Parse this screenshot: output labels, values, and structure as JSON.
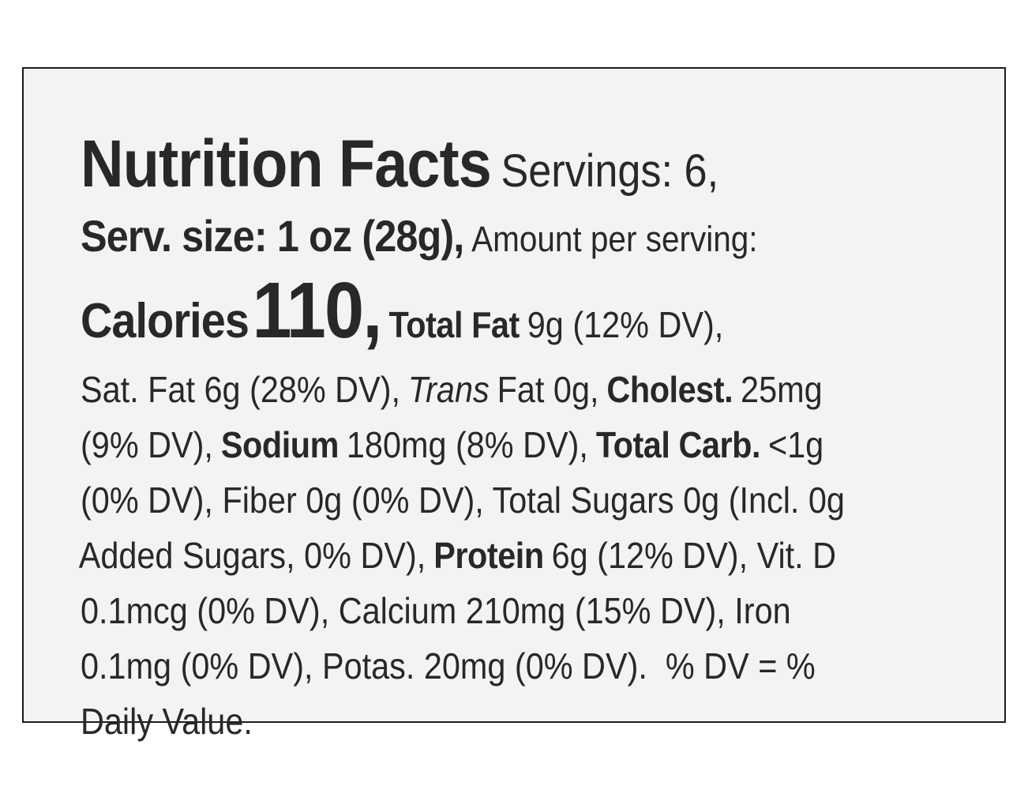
{
  "label": {
    "lines": [
      [
        "Nutrition Facts",
        "Servings: 6,"
      ],
      [
        "Serv. size: 1 oz (28g),",
        "Amount per serving:"
      ],
      [
        "Calories",
        "110,",
        "Total Fat",
        "9g (12% DV),"
      ],
      [
        "Sat. Fat 6g (28% DV),",
        "Trans",
        "Fat 0g,",
        "Cholest.",
        "25mg"
      ],
      [
        "(9% DV),",
        "Sodium",
        "180mg (8% DV),",
        "Total Carb.",
        "<1g"
      ],
      [
        "(0% DV), Fiber 0g (0% DV), Total Sugars 0g (Incl. 0g"
      ],
      [
        "Added Sugars, 0% DV),",
        "Protein",
        "6g (12% DV), Vit. D"
      ],
      [
        "0.1mcg (0% DV), Calcium 210mg (15% DV), Iron"
      ],
      [
        "0.1mg (0% DV), Potas. 20mg (0% DV).  % DV = %"
      ],
      [
        "Daily Value."
      ]
    ]
  }
}
